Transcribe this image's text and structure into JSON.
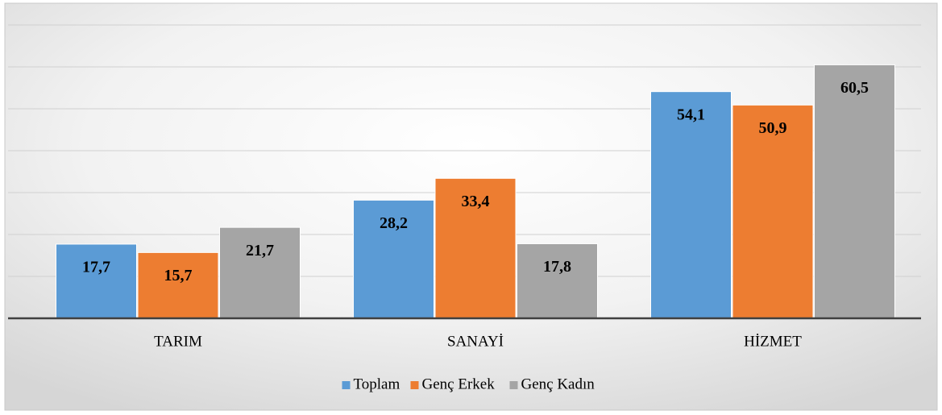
{
  "chart_data": {
    "type": "bar",
    "categories": [
      "TARIM",
      "SANAYİ",
      "HİZMET"
    ],
    "series": [
      {
        "name": "Toplam",
        "color": "#5b9bd5",
        "values": [
          17.7,
          28.2,
          54.1
        ],
        "value_labels": [
          "17,7",
          "28,2",
          "54,1"
        ]
      },
      {
        "name": "Genç Erkek",
        "color": "#ed7d31",
        "values": [
          15.7,
          33.4,
          50.9
        ],
        "value_labels": [
          "15,7",
          "33,4",
          "50,9"
        ]
      },
      {
        "name": "Genç Kadın",
        "color": "#a5a5a5",
        "values": [
          21.7,
          17.8,
          60.5
        ],
        "value_labels": [
          "21,7",
          "17,8",
          "60,5"
        ]
      }
    ],
    "ylim": [
      0,
      70
    ],
    "yticks": [
      0,
      10,
      20,
      30,
      40,
      50,
      60,
      70
    ],
    "grid": true,
    "legend": "bottom"
  }
}
